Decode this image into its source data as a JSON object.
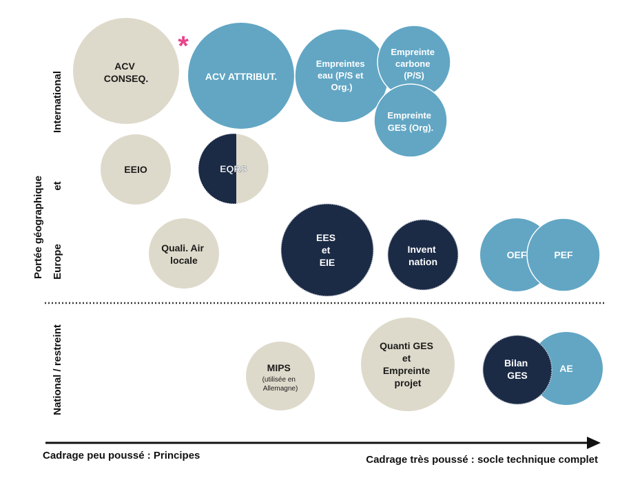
{
  "colors": {
    "beige": "#DEDACB",
    "blue": "#62A6C4",
    "navy": "#1B2A45",
    "asterisk": "#E8458B",
    "text_dark": "#1A1A1A",
    "text_light": "#FFFFFF"
  },
  "y_axis": {
    "title": "Portée géographique",
    "band_international": "International",
    "band_et": "et",
    "band_europe": "Europe",
    "band_national": "National / restreint"
  },
  "x_axis": {
    "left_label": "Cadrage peu poussé : Principes",
    "right_label": "Cadrage très poussé : socle technique complet"
  },
  "marker": {
    "asterisk": "*"
  },
  "bubbles": {
    "acv_conseq": {
      "line1": "ACV",
      "line2": "CONSEQ."
    },
    "acv_attribut": {
      "line1": "ACV ATTRIBUT."
    },
    "empreintes_eau": {
      "line1": "Empreintes",
      "line2": "eau (P/S et",
      "line3": "Org.)"
    },
    "empreinte_carbone": {
      "line1": "Empreinte",
      "line2": "carbone",
      "line3": "(P/S)"
    },
    "empreinte_ges": {
      "line1": "Empreinte",
      "line2": "GES (Org)."
    },
    "eeio": {
      "line1": "EEIO"
    },
    "eqrs": {
      "line1": "EQRS"
    },
    "quali_air": {
      "line1": "Quali. Air",
      "line2": "locale"
    },
    "ees_eie": {
      "line1": "EES",
      "line2": "et",
      "line3": "EIE"
    },
    "invent_nation": {
      "line1": "Invent",
      "line2": "nation"
    },
    "oef": {
      "line1": "OEF"
    },
    "pef": {
      "line1": "PEF"
    },
    "mips": {
      "line1": "MIPS",
      "line2": "(utilisée en",
      "line3": "Allemagne)"
    },
    "quanti_ges": {
      "line1": "Quanti GES",
      "line2": "et",
      "line3": "Empreinte",
      "line4": "projet"
    },
    "bilan_ges": {
      "line1": "Bilan",
      "line2": "GES"
    },
    "ae": {
      "line1": "AE"
    }
  }
}
